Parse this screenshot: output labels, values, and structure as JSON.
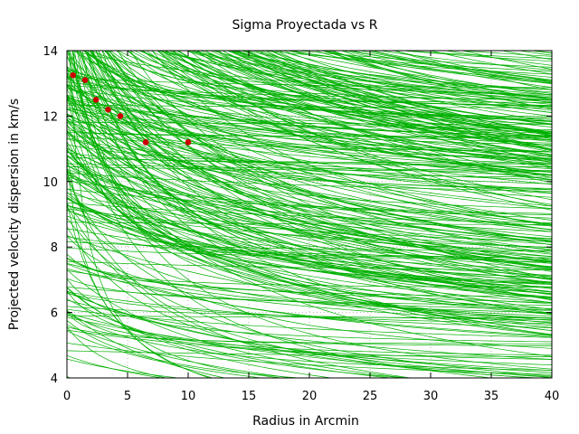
{
  "chart_data": {
    "type": "line",
    "title": "Sigma Proyectada vs R",
    "xlabel": "Radius in Arcmin",
    "ylabel": "Projected velocity dispersion in km/s",
    "xlim": [
      0,
      40
    ],
    "ylim": [
      4,
      14
    ],
    "xticks": [
      0,
      5,
      10,
      15,
      20,
      25,
      30,
      35,
      40
    ],
    "yticks": [
      4,
      6,
      8,
      10,
      12,
      14
    ],
    "grid": true,
    "grid_style": "dotted",
    "model_curves": {
      "color": "#00b000",
      "count": 400,
      "note_visible": "",
      "parametric_family": "sigma(R) = s_inf + (s0 - s_inf) / (1 + R / rc)"
    },
    "observed_points": {
      "color": "#cc0000",
      "x": [
        0.5,
        1.5,
        2.4,
        3.4,
        4.4,
        6.5,
        10.0
      ],
      "y": [
        13.25,
        13.1,
        12.5,
        12.2,
        12.0,
        11.2,
        11.2
      ]
    },
    "colors": {
      "background": "#ffffff",
      "axes": "#000000",
      "grid": "#a0a0a0"
    }
  }
}
